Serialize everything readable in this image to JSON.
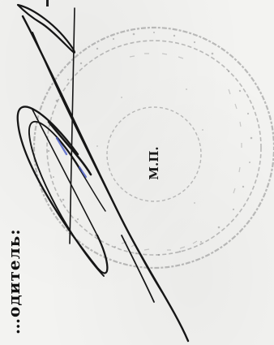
{
  "document": {
    "rotated_heading": "…одитель:",
    "stamp_label": "М.П."
  },
  "stamp": {
    "ink_color": "#6e6e6e",
    "visibility": "faint-circular-seal"
  },
  "signature": {
    "ink_color": "#161616",
    "accent_ink_color": "#4a5cc8"
  }
}
